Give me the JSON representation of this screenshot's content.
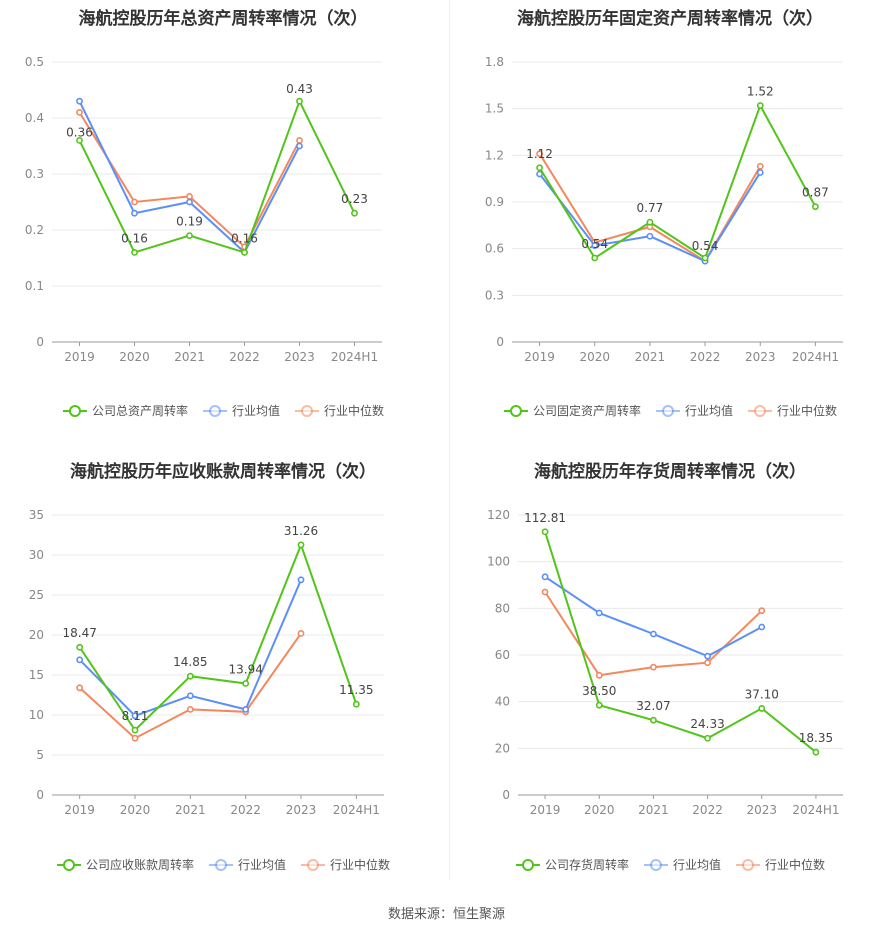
{
  "footer": "数据来源：恒生聚源",
  "colors": {
    "company": "#52c41a",
    "avg": "#5b8ff9",
    "median": "#f4875d"
  },
  "chart_data": [
    {
      "type": "line",
      "title": "海航控股历年总资产周转率情况（次）",
      "categories": [
        "2019",
        "2020",
        "2021",
        "2022",
        "2023",
        "2024H1"
      ],
      "ylim": [
        0,
        0.5
      ],
      "yticks": [
        "0",
        "0.1",
        "0.2",
        "0.3",
        "0.4",
        "0.5"
      ],
      "grid": true,
      "legend_position": "bottom",
      "series": [
        {
          "name": "公司总资产周转率",
          "key": "company",
          "values": [
            0.36,
            0.16,
            0.19,
            0.16,
            0.43,
            0.23
          ],
          "labels": [
            "0.36",
            "0.16",
            "0.19",
            "0.16",
            "0.43",
            "0.23"
          ]
        },
        {
          "name": "行业均值",
          "key": "avg",
          "values": [
            0.43,
            0.23,
            0.25,
            0.16,
            0.35,
            null
          ]
        },
        {
          "name": "行业中位数",
          "key": "median",
          "values": [
            0.41,
            0.25,
            0.26,
            0.17,
            0.36,
            null
          ]
        }
      ]
    },
    {
      "type": "line",
      "title": "海航控股历年固定资产周转率情况（次）",
      "categories": [
        "2019",
        "2020",
        "2021",
        "2022",
        "2023",
        "2024H1"
      ],
      "ylim": [
        0,
        1.8
      ],
      "yticks": [
        "0",
        "0.3",
        "0.6",
        "0.9",
        "1.2",
        "1.5",
        "1.8"
      ],
      "grid": true,
      "legend_position": "bottom",
      "series": [
        {
          "name": "公司固定资产周转率",
          "key": "company",
          "values": [
            1.12,
            0.54,
            0.77,
            0.54,
            1.52,
            0.87
          ],
          "labels": [
            "1.12",
            "0.54",
            "0.77",
            "0.54",
            "1.52",
            "0.87"
          ]
        },
        {
          "name": "行业均值",
          "key": "avg",
          "values": [
            1.08,
            0.62,
            0.68,
            0.52,
            1.09,
            null
          ]
        },
        {
          "name": "行业中位数",
          "key": "median",
          "values": [
            1.21,
            0.64,
            0.74,
            0.52,
            1.13,
            null
          ]
        }
      ]
    },
    {
      "type": "line",
      "title": "海航控股历年应收账款周转率情况（次）",
      "categories": [
        "2019",
        "2020",
        "2021",
        "2022",
        "2023",
        "2024H1"
      ],
      "ylim": [
        0,
        35
      ],
      "yticks": [
        "0",
        "5",
        "10",
        "15",
        "20",
        "25",
        "30",
        "35"
      ],
      "grid": true,
      "legend_position": "bottom",
      "series": [
        {
          "name": "公司应收账款周转率",
          "key": "company",
          "values": [
            18.47,
            8.11,
            14.85,
            13.94,
            31.26,
            11.35
          ],
          "labels": [
            "18.47",
            "8.11",
            "14.85",
            "13.94",
            "31.26",
            "11.35"
          ]
        },
        {
          "name": "行业均值",
          "key": "avg",
          "values": [
            16.9,
            9.9,
            12.4,
            10.7,
            26.9,
            null
          ]
        },
        {
          "name": "行业中位数",
          "key": "median",
          "values": [
            13.4,
            7.1,
            10.7,
            10.4,
            20.2,
            null
          ]
        }
      ]
    },
    {
      "type": "line",
      "title": "海航控股历年存货周转率情况（次）",
      "categories": [
        "2019",
        "2020",
        "2021",
        "2022",
        "2023",
        "2024H1"
      ],
      "ylim": [
        0,
        120
      ],
      "yticks": [
        "0",
        "20",
        "40",
        "60",
        "80",
        "100",
        "120"
      ],
      "grid": true,
      "legend_position": "bottom",
      "series": [
        {
          "name": "公司存货周转率",
          "key": "company",
          "values": [
            112.81,
            38.5,
            32.07,
            24.33,
            37.1,
            18.35
          ],
          "labels": [
            "112.81",
            "38.50",
            "32.07",
            "24.33",
            "37.10",
            "18.35"
          ]
        },
        {
          "name": "行业均值",
          "key": "avg",
          "values": [
            93.5,
            78.0,
            69.0,
            59.5,
            72.0,
            null
          ]
        },
        {
          "name": "行业中位数",
          "key": "median",
          "values": [
            87.0,
            51.3,
            54.8,
            56.7,
            79.0,
            null
          ]
        }
      ]
    }
  ]
}
